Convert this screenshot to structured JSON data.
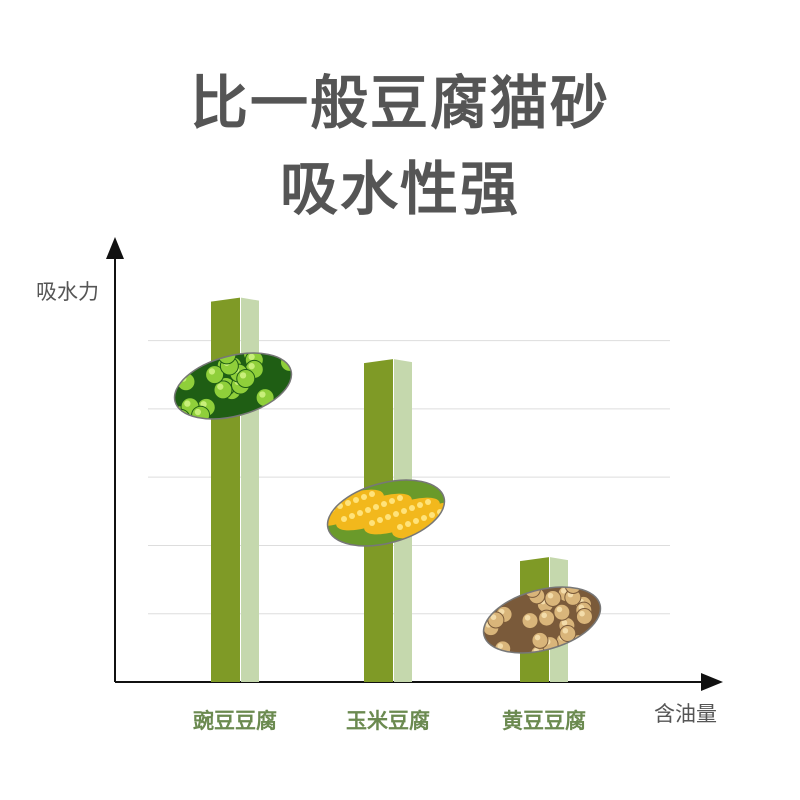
{
  "title_line1": "比一般豆腐猫砂",
  "title_line2": "吸水性强",
  "chart_data": {
    "type": "bar",
    "ylabel": "吸水力",
    "xlabel": "含油量",
    "categories": [
      "豌豆豆腐",
      "玉米豆腐",
      "黄豆豆腐"
    ],
    "values": [
      5.6,
      4.7,
      1.8
    ],
    "ylim": [
      0,
      6.4
    ],
    "grid": true,
    "colors": {
      "bar_front": "#7f9a26",
      "bar_side": "#c5d8ad",
      "label": "#6b8a50",
      "axis": "#111111",
      "grid": "#dddddd"
    },
    "images": [
      "peas",
      "corn",
      "soybeans"
    ]
  }
}
